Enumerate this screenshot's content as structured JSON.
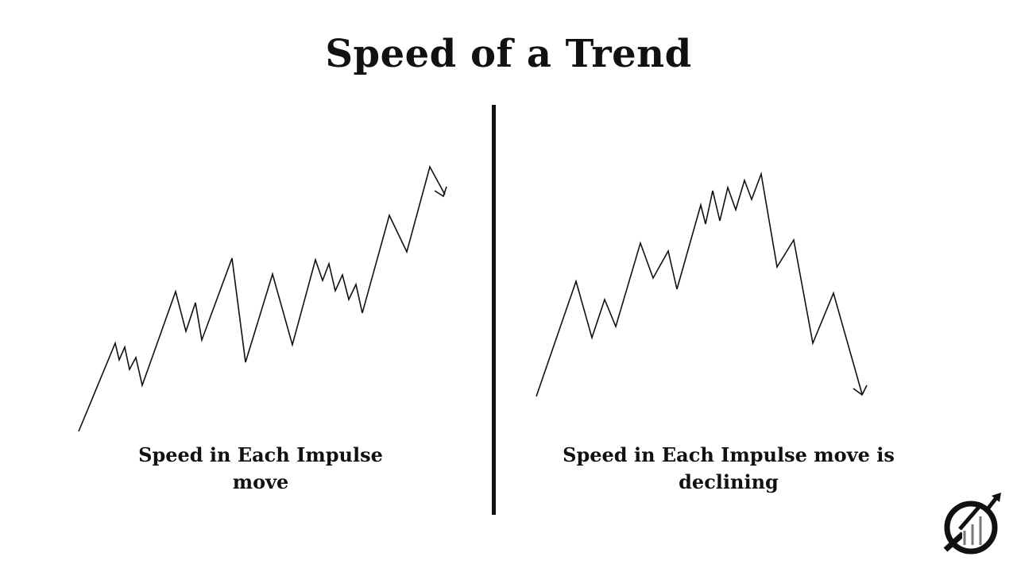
{
  "title": "Speed of a Trend",
  "left_panel": {
    "caption": "Speed in Each Impulse move"
  },
  "right_panel": {
    "caption": "Speed in Each Impulse move is declining"
  },
  "colors": {
    "line": "#111111",
    "background": "#ffffff"
  },
  "icons": {
    "logo": "circular-chart-logo-icon"
  }
}
